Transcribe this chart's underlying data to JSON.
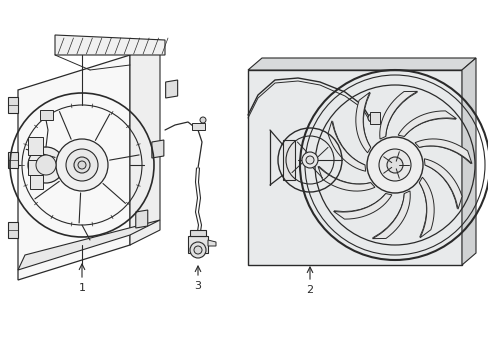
{
  "background_color": "#ffffff",
  "line_color": "#2a2a2a",
  "panel_fill": "#e8eaeb",
  "fig_w": 4.89,
  "fig_h": 3.6,
  "dpi": 100,
  "label1": "1",
  "label2": "2",
  "label3": "3"
}
